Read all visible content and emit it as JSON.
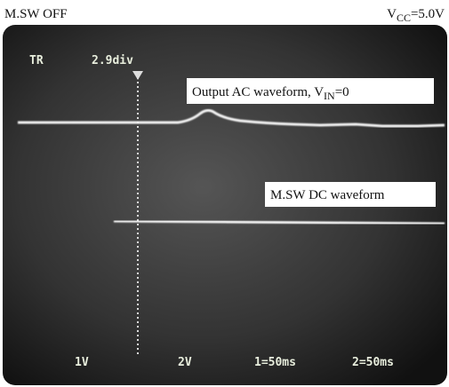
{
  "header": {
    "left": "M.SW OFF",
    "right": {
      "main": "V",
      "sub": "CC",
      "rest": "=5.0V"
    }
  },
  "screen": {
    "trigger": "TR",
    "trigger_position": "2.9div",
    "labels": [
      {
        "main": "Output AC waveform, V",
        "sub": "IN",
        "rest": "=0"
      },
      {
        "main": "M.SW DC waveform"
      }
    ],
    "readouts": [
      "1V",
      "2V",
      "1=50ms",
      "2=50ms"
    ]
  }
}
